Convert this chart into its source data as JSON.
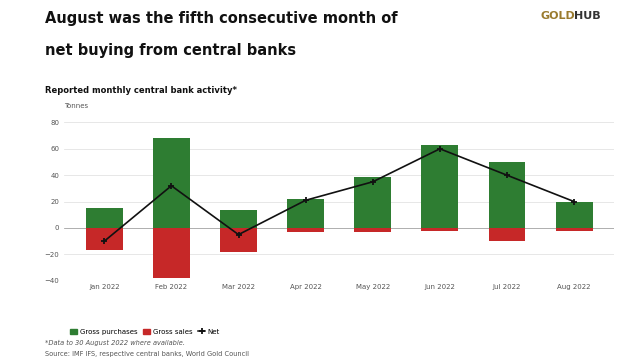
{
  "months": [
    "Jan 2022",
    "Feb 2022",
    "Mar 2022",
    "Apr 2022",
    "May 2022",
    "Jun 2022",
    "Jul 2022",
    "Aug 2022"
  ],
  "gross_purchases": [
    15,
    68,
    14,
    22,
    39,
    63,
    50,
    20
  ],
  "gross_sales": [
    -17,
    -38,
    -18,
    -3,
    -3,
    -2,
    -10,
    -2
  ],
  "net": [
    -10,
    32,
    -5,
    21,
    35,
    60,
    40,
    20
  ],
  "title_line1": "August was the fifth consecutive month of",
  "title_line2": "net buying from central banks",
  "subtitle": "Reported monthly central bank activity*",
  "ylabel": "Tonnes",
  "ylim_min": -40,
  "ylim_max": 80,
  "yticks": [
    -40,
    -20,
    0,
    20,
    40,
    60,
    80
  ],
  "purchases_color": "#2e7d32",
  "sales_color": "#c62828",
  "net_color": "#111111",
  "background_color": "#ffffff",
  "logo_gold": "GOLD",
  "logo_hub": "HUB",
  "logo_color_gold": "#9a7b2e",
  "logo_color_hub": "#333333",
  "footnote1": "*Data to 30 August 2022 where available.",
  "footnote2": "Source: IMF IFS, respective central banks, World Gold Council",
  "legend_purchases": "Gross purchases",
  "legend_sales": "Gross sales",
  "legend_net": "Net",
  "title_underline_color": "#9a7b2e"
}
